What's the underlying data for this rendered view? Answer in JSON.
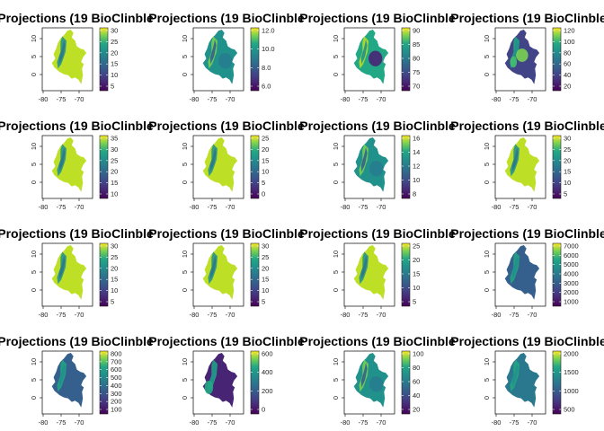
{
  "chart_data": [
    {
      "type": "heatmap",
      "title": "Projections (19 BioClinble",
      "x_ticks": [
        "-80",
        "-75",
        "-70"
      ],
      "y_ticks": [
        "10",
        "5",
        "0"
      ],
      "legend_ticks": [
        "30",
        "25",
        "20",
        "15",
        "10",
        "5"
      ],
      "palette": "viridis",
      "map_base": 0.88,
      "map_variation": "high"
    },
    {
      "type": "heatmap",
      "title": "Projections (19 BioClinble",
      "x_ticks": [
        "-80",
        "-75",
        "-70"
      ],
      "y_ticks": [
        "10",
        "5",
        "0"
      ],
      "legend_ticks": [
        "12.0",
        "10.0",
        "8.0",
        "6.0"
      ],
      "palette": "viridis",
      "map_base": 0.5,
      "map_variation": "medium"
    },
    {
      "type": "heatmap",
      "title": "Projections (19 BioClinble",
      "x_ticks": [
        "-80",
        "-75",
        "-70"
      ],
      "y_ticks": [
        "10",
        "5",
        "0"
      ],
      "legend_ticks": [
        "90",
        "85",
        "80",
        "75",
        "70"
      ],
      "palette": "viridis",
      "map_base": 0.55,
      "map_variation": "dark-east"
    },
    {
      "type": "heatmap",
      "title": "Projections (19 BioClinble",
      "x_ticks": [
        "-80",
        "-75",
        "-70"
      ],
      "y_ticks": [
        "10",
        "5",
        "0"
      ],
      "legend_ticks": [
        "120",
        "100",
        "80",
        "60",
        "40",
        "20"
      ],
      "palette": "viridis",
      "map_base": 0.2,
      "map_variation": "bright-center"
    },
    {
      "type": "heatmap",
      "title": "Projections (19 BioClinble",
      "x_ticks": [
        "-80",
        "-75",
        "-70"
      ],
      "y_ticks": [
        "10",
        "5",
        "0"
      ],
      "legend_ticks": [
        "35",
        "30",
        "25",
        "20",
        "15",
        "10"
      ],
      "palette": "viridis",
      "map_base": 0.9,
      "map_variation": "high"
    },
    {
      "type": "heatmap",
      "title": "Projections (19 BioClinble",
      "x_ticks": [
        "-80",
        "-75",
        "-70"
      ],
      "y_ticks": [
        "10",
        "5",
        "0"
      ],
      "legend_ticks": [
        "25",
        "20",
        "15",
        "10",
        "5",
        "0"
      ],
      "palette": "viridis",
      "map_base": 0.88,
      "map_variation": "high"
    },
    {
      "type": "heatmap",
      "title": "Projections (19 BioClinble",
      "x_ticks": [
        "-80",
        "-75",
        "-70"
      ],
      "y_ticks": [
        "10",
        "5",
        "0"
      ],
      "legend_ticks": [
        "16",
        "14",
        "12",
        "10",
        "8"
      ],
      "palette": "viridis",
      "map_base": 0.5,
      "map_variation": "medium"
    },
    {
      "type": "heatmap",
      "title": "Projections (19 BioClinble",
      "x_ticks": [
        "-80",
        "-75",
        "-70"
      ],
      "y_ticks": [
        "10",
        "5",
        "0"
      ],
      "legend_ticks": [
        "30",
        "25",
        "20",
        "15",
        "10",
        "5"
      ],
      "palette": "viridis",
      "map_base": 0.88,
      "map_variation": "high"
    },
    {
      "type": "heatmap",
      "title": "Projections (19 BioClinble",
      "x_ticks": [
        "-80",
        "-75",
        "-70"
      ],
      "y_ticks": [
        "10",
        "5",
        "0"
      ],
      "legend_ticks": [
        "30",
        "25",
        "20",
        "15",
        "10",
        "5"
      ],
      "palette": "viridis",
      "map_base": 0.86,
      "map_variation": "high"
    },
    {
      "type": "heatmap",
      "title": "Projections (19 BioClinble",
      "x_ticks": [
        "-80",
        "-75",
        "-70"
      ],
      "y_ticks": [
        "10",
        "5",
        "0"
      ],
      "legend_ticks": [
        "30",
        "25",
        "20",
        "15",
        "10",
        "5"
      ],
      "palette": "viridis",
      "map_base": 0.88,
      "map_variation": "high"
    },
    {
      "type": "heatmap",
      "title": "Projections (19 BioClinble",
      "x_ticks": [
        "-80",
        "-75",
        "-70"
      ],
      "y_ticks": [
        "10",
        "5",
        "0"
      ],
      "legend_ticks": [
        "25",
        "20",
        "15",
        "10",
        "5"
      ],
      "palette": "viridis",
      "map_base": 0.86,
      "map_variation": "high"
    },
    {
      "type": "heatmap",
      "title": "Projections (19 BioClinble",
      "x_ticks": [
        "-80",
        "-75",
        "-70"
      ],
      "y_ticks": [
        "10",
        "5",
        "0"
      ],
      "legend_ticks": [
        "7000",
        "6000",
        "5000",
        "4000",
        "3000",
        "2000",
        "1000"
      ],
      "palette": "viridis",
      "map_base": 0.3,
      "map_variation": "low"
    },
    {
      "type": "heatmap",
      "title": "Projections (19 BioClinble",
      "x_ticks": [
        "-80",
        "-75",
        "-70"
      ],
      "y_ticks": [
        "10",
        "5",
        "0"
      ],
      "legend_ticks": [
        "800",
        "700",
        "600",
        "500",
        "400",
        "300",
        "200",
        "100"
      ],
      "palette": "viridis",
      "map_base": 0.3,
      "map_variation": "low"
    },
    {
      "type": "heatmap",
      "title": "Projections (19 BioClinble",
      "x_ticks": [
        "-80",
        "-75",
        "-70"
      ],
      "y_ticks": [
        "10",
        "5",
        "0"
      ],
      "legend_ticks": [
        "600",
        "400",
        "200",
        "0"
      ],
      "palette": "viridis",
      "map_base": 0.12,
      "map_variation": "dark"
    },
    {
      "type": "heatmap",
      "title": "Projections (19 BioClinble",
      "x_ticks": [
        "-80",
        "-75",
        "-70"
      ],
      "y_ticks": [
        "10",
        "5",
        "0"
      ],
      "legend_ticks": [
        "100",
        "80",
        "60",
        "40",
        "20"
      ],
      "palette": "viridis",
      "map_base": 0.45,
      "map_variation": "medium"
    },
    {
      "type": "heatmap",
      "title": "Projections (19 BioClinble",
      "x_ticks": [
        "-80",
        "-75",
        "-70"
      ],
      "y_ticks": [
        "10",
        "5",
        "0"
      ],
      "legend_ticks": [
        "2000",
        "1500",
        "1000",
        "500"
      ],
      "palette": "viridis",
      "map_base": 0.35,
      "map_variation": "low"
    }
  ]
}
